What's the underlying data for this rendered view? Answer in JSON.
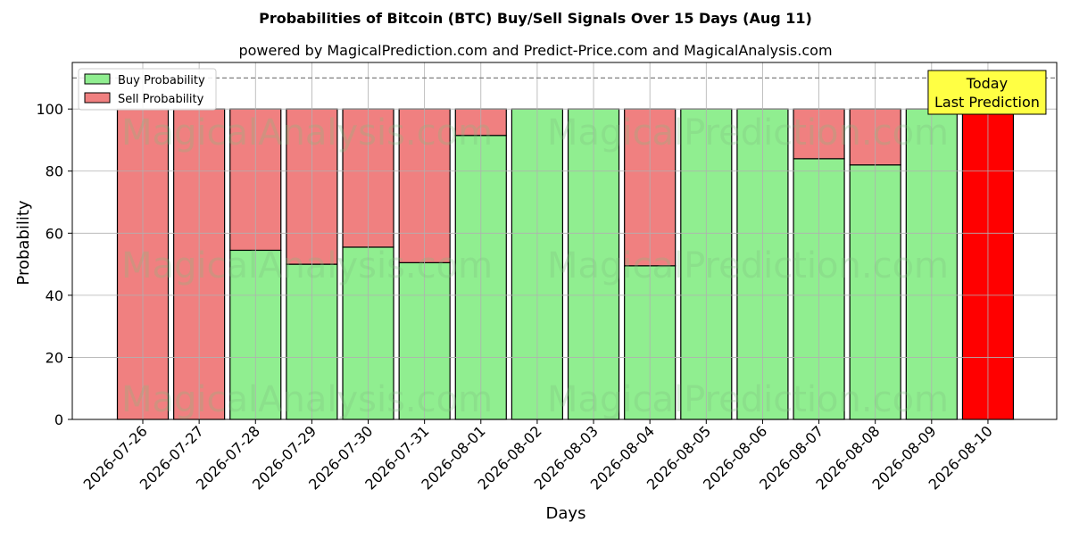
{
  "chart_data": {
    "type": "bar",
    "stacked": true,
    "title": "Probabilities of Bitcoin (BTC) Buy/Sell Signals Over 15 Days (Aug 11)",
    "subtitle": "powered by MagicalPrediction.com and Predict-Price.com and MagicalAnalysis.com",
    "xlabel": "Days",
    "ylabel": "Probability",
    "ylim": [
      0,
      115
    ],
    "yticks": [
      0,
      20,
      40,
      60,
      80,
      100
    ],
    "reference_line": 110,
    "grid": true,
    "legend_position": "top-left",
    "categories": [
      "2026-07-26",
      "2026-07-27",
      "2026-07-28",
      "2026-07-29",
      "2026-07-30",
      "2026-07-31",
      "2026-08-01",
      "2026-08-02",
      "2026-08-03",
      "2026-08-04",
      "2026-08-05",
      "2026-08-06",
      "2026-08-07",
      "2026-08-08",
      "2026-08-09",
      "2026-08-10"
    ],
    "series": [
      {
        "name": "Buy Probability",
        "color": "#90ee90",
        "values": [
          0,
          0,
          54.5,
          50,
          55.5,
          50.5,
          91.5,
          100,
          100,
          49.5,
          100,
          100,
          84,
          82,
          100,
          0
        ]
      },
      {
        "name": "Sell Probability",
        "color": "#f08080",
        "values": [
          100,
          100,
          45.5,
          50,
          44.5,
          49.5,
          8.5,
          0,
          0,
          50.5,
          0,
          0,
          16,
          18,
          0,
          100
        ]
      }
    ],
    "highlight": {
      "category": "2026-08-10",
      "color": "#ff0000",
      "label_lines": [
        "Today",
        "Last Prediction"
      ],
      "label_bg": "#ffff44"
    },
    "watermarks": [
      "MagicalAnalysis.com",
      "MagicalPrediction.com"
    ]
  }
}
